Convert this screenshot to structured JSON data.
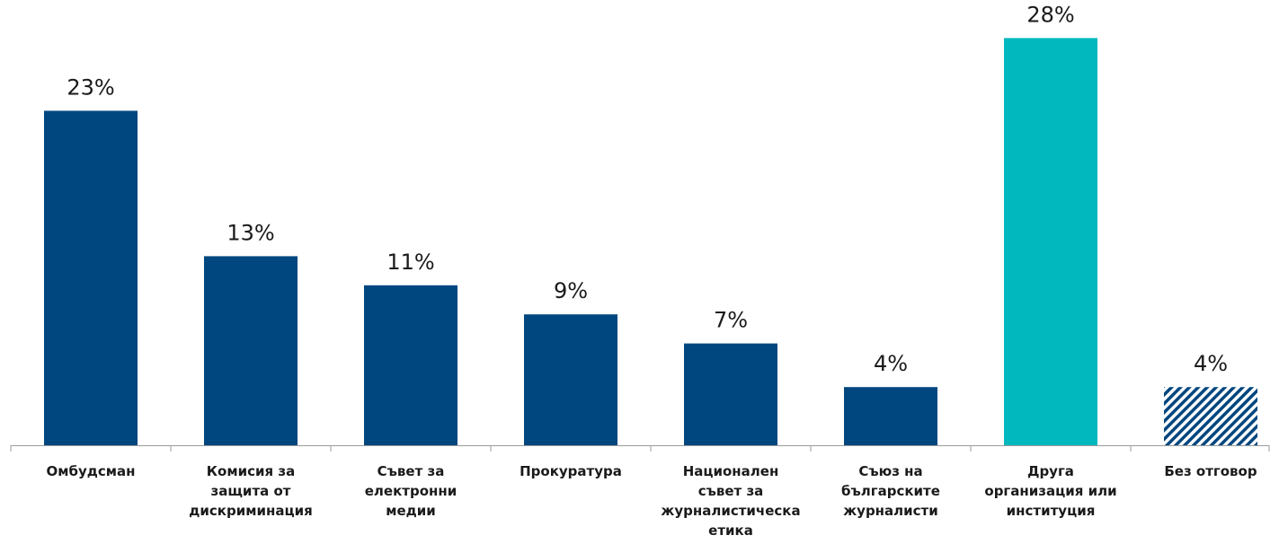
{
  "chart_data": {
    "type": "bar",
    "categories": [
      [
        "Омбудсман"
      ],
      [
        "Комисия за",
        "защита от",
        "дискриминация"
      ],
      [
        "Съвет за",
        "електронни",
        "медии"
      ],
      [
        "Прокуратура"
      ],
      [
        "Национален",
        "съвет за",
        "журналистическа",
        "етика"
      ],
      [
        "Съюз на",
        "българските",
        "журналисти"
      ],
      [
        "Друга",
        "организация или",
        "институция"
      ],
      [
        "Без отговор"
      ]
    ],
    "values": [
      23,
      13,
      11,
      9,
      7,
      4,
      28,
      4
    ],
    "value_labels": [
      "23%",
      "13%",
      "11%",
      "9%",
      "7%",
      "4%",
      "28%",
      "4%"
    ],
    "bar_styles": [
      "solid",
      "solid",
      "solid",
      "solid",
      "solid",
      "solid",
      "solid",
      "hatched"
    ],
    "bar_colors": [
      "#00467f",
      "#00467f",
      "#00467f",
      "#00467f",
      "#00467f",
      "#00467f",
      "#00b8be",
      "#00467f"
    ],
    "ylim": [
      0,
      30
    ],
    "grid": false,
    "legend": "none"
  }
}
